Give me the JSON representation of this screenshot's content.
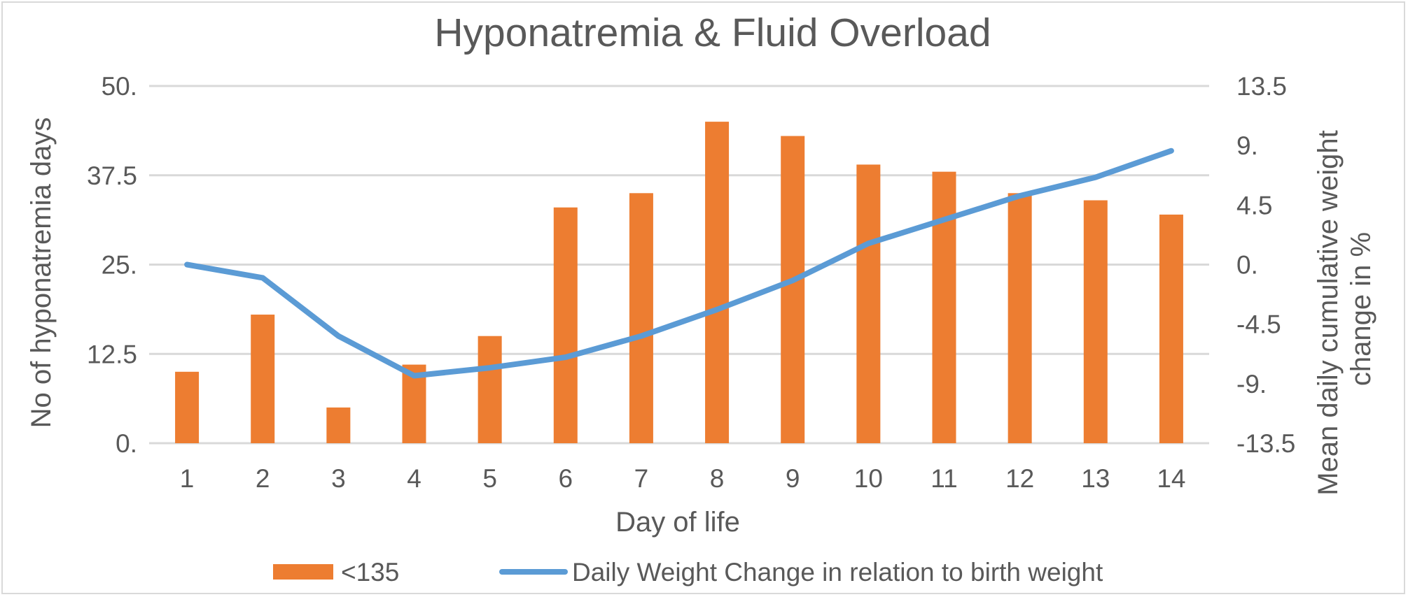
{
  "chart_data": {
    "type": "bar+line",
    "title": "Hyponatremia & Fluid Overload",
    "xlabel": "Day of life",
    "ylabel_left": "No of hyponatremia days",
    "ylabel_right_lines": [
      "Mean daily cumulative  weight",
      "change in %"
    ],
    "categories": [
      "1",
      "2",
      "3",
      "4",
      "5",
      "6",
      "7",
      "8",
      "9",
      "10",
      "11",
      "12",
      "13",
      "14"
    ],
    "y_left": {
      "min": 0,
      "max": 50,
      "ticks": [
        "0.",
        "12.5",
        "25.",
        "37.5",
        "50."
      ]
    },
    "y_right": {
      "min": -13.5,
      "max": 13.5,
      "ticks": [
        "-13.5",
        "-9.",
        "-4.5",
        "0.",
        "4.5",
        "9.",
        "13.5"
      ]
    },
    "grid": true,
    "legend_position": "bottom",
    "series": [
      {
        "name": "<135",
        "kind": "bar",
        "axis": "left",
        "color": "#ed7d31",
        "values": [
          10,
          18,
          5,
          11,
          15,
          33,
          35,
          45,
          43,
          39,
          38,
          35,
          34,
          32
        ]
      },
      {
        "name": "Daily Weight Change in relation to birth weight",
        "kind": "line",
        "axis": "right",
        "color": "#5b9bd5",
        "values": [
          0,
          -1,
          -5.4,
          -8.4,
          -7.8,
          -7,
          -5.4,
          -3.4,
          -1.2,
          1.6,
          3.4,
          5.2,
          6.6,
          8.6
        ]
      }
    ]
  }
}
